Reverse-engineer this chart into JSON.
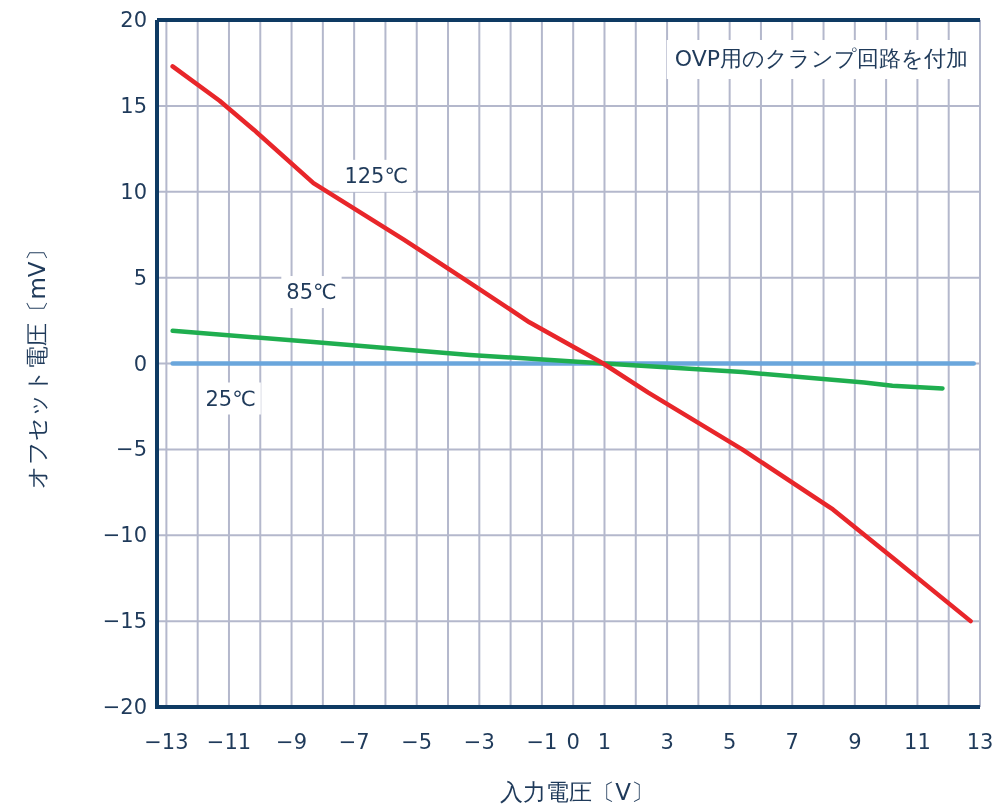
{
  "chart_data": {
    "type": "line",
    "xlabel": "入力電圧〔V〕",
    "ylabel": "オフセット電圧〔mV〕",
    "annotations": [
      "OVP用のクランプ回路を付加"
    ],
    "xlim": [
      -13.3,
      13
    ],
    "ylim": [
      -20,
      20
    ],
    "xticks": [
      -13,
      {
        "value": -12,
        "label": null
      },
      -11,
      {
        "value": -10,
        "label": null
      },
      -9,
      {
        "value": -8,
        "label": null
      },
      -7,
      {
        "value": -6,
        "label": null
      },
      -5,
      {
        "value": -4,
        "label": null
      },
      -3,
      {
        "value": -2,
        "label": null
      },
      -1,
      0,
      1,
      {
        "value": 2,
        "label": null
      },
      3,
      {
        "value": 4,
        "label": null
      },
      5,
      {
        "value": 6,
        "label": null
      },
      7,
      {
        "value": 8,
        "label": null
      },
      9,
      {
        "value": 10,
        "label": null
      },
      11,
      {
        "value": 12,
        "label": null
      },
      13
    ],
    "yticks": [
      -20,
      -15,
      -10,
      -5,
      0,
      5,
      10,
      15,
      20
    ],
    "grid": true,
    "line_style": "solid",
    "series": [
      {
        "name": "25℃",
        "color": "#6aa6dc",
        "x": [
          -12.8,
          12.8
        ],
        "values": [
          0,
          0
        ]
      },
      {
        "name": "85℃",
        "color": "#1fae4f",
        "x": [
          -12.8,
          -8.3,
          -3.3,
          1,
          5.4,
          9.3,
          10.2,
          11.8
        ],
        "values": [
          1.9,
          1.25,
          0.5,
          0,
          -0.5,
          -1.1,
          -1.3,
          -1.45
        ]
      },
      {
        "name": "125℃",
        "color": "#e8262a",
        "x": [
          -12.8,
          -11.3,
          -10.2,
          -8.3,
          -5.4,
          -3.3,
          -1.4,
          0.96,
          2.4,
          5.4,
          8.3,
          10.2,
          12.7
        ],
        "values": [
          17.3,
          15.3,
          13.6,
          10.5,
          7.2,
          4.7,
          2.4,
          0,
          -1.7,
          -5.0,
          -8.5,
          -11.3,
          -15.0
        ]
      }
    ]
  }
}
